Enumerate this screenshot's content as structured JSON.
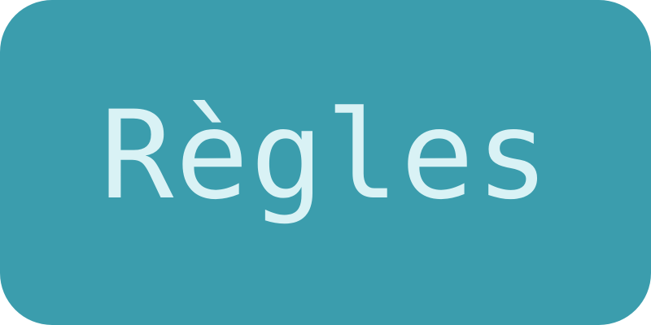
{
  "button": {
    "label": "Règles",
    "background_color": "#3b9dad",
    "text_color": "#d9f2f5"
  }
}
